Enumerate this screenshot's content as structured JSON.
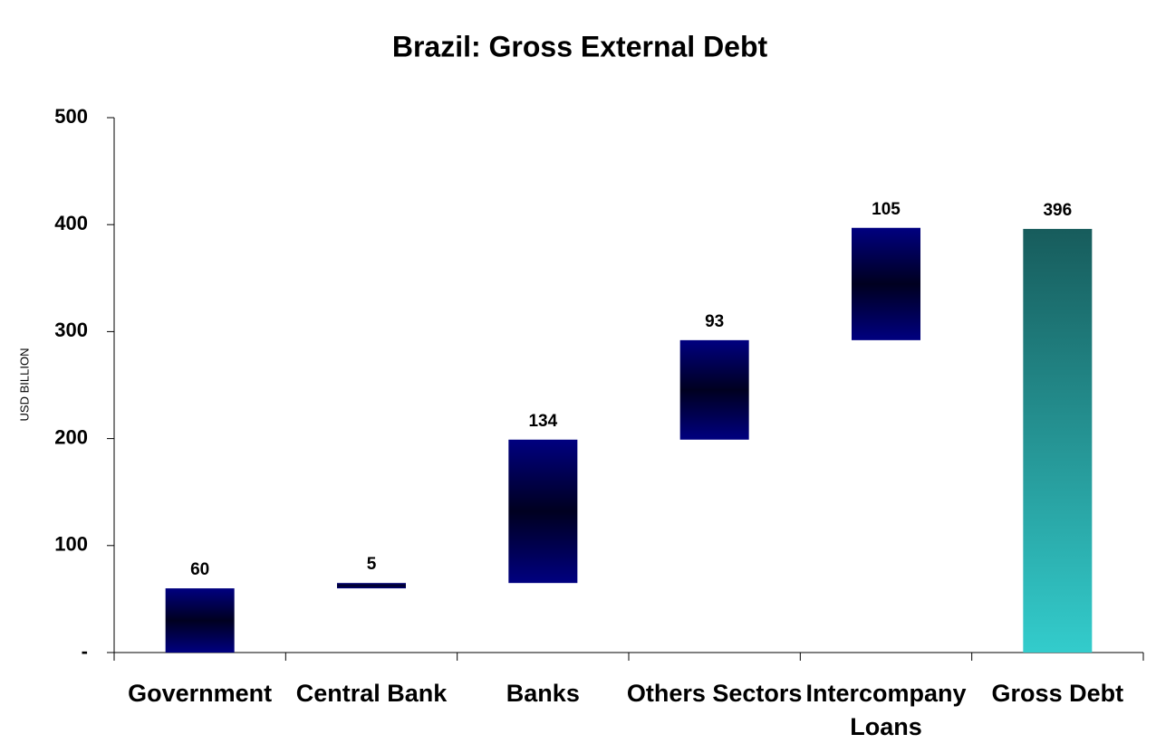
{
  "chart_data": {
    "type": "waterfall",
    "title": "Brazil: Gross External Debt",
    "y_label": "USD BILLION",
    "categories": [
      "Government",
      "Central Bank",
      "Banks",
      "Others Sectors",
      "Intercompany Loans",
      "Gross Debt"
    ],
    "values": [
      60,
      5,
      134,
      93,
      105,
      396
    ],
    "measures": [
      "relative",
      "relative",
      "relative",
      "relative",
      "relative",
      "total"
    ],
    "colors": [
      "#000080",
      "#000080",
      "#000080",
      "#000080",
      "#000080",
      "#33cccc"
    ],
    "ylim": [
      0,
      500
    ],
    "yticks": [
      {
        "value": 0,
        "label": "-"
      },
      100,
      200,
      300,
      400,
      500
    ],
    "grid": false
  }
}
